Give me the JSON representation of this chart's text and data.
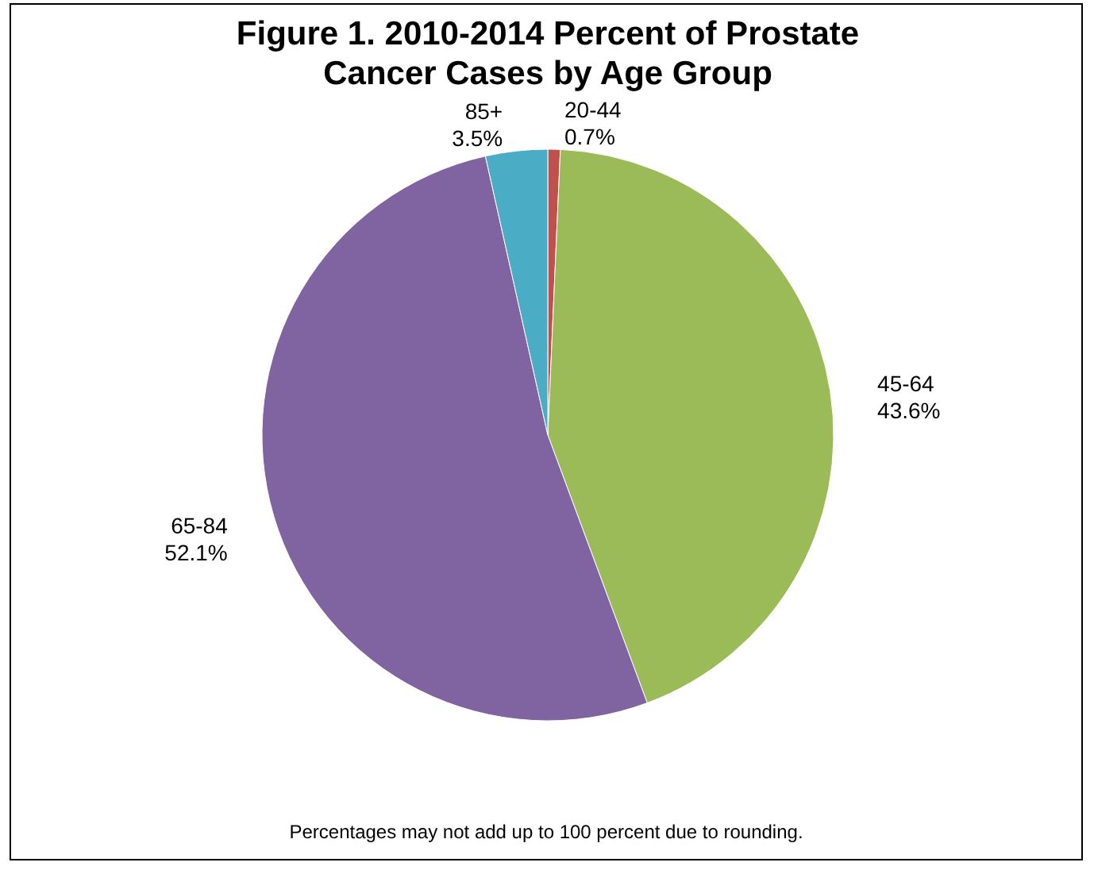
{
  "chart_data": {
    "type": "pie",
    "title": "Figure 1.  2010-2014 Percent of Prostate Cancer Cases by Age Group",
    "categories": [
      "20-44",
      "45-64",
      "65-84",
      "85+"
    ],
    "values": [
      0.7,
      43.6,
      52.1,
      3.5
    ],
    "value_labels": [
      "0.7%",
      "43.6%",
      "52.1%",
      "3.5%"
    ],
    "colors": [
      "#c0504d",
      "#9bbb59",
      "#8064a2",
      "#4bacc6"
    ],
    "legend": false,
    "annotations": [
      "Percentages may not add up to 100 percent due to rounding."
    ]
  }
}
